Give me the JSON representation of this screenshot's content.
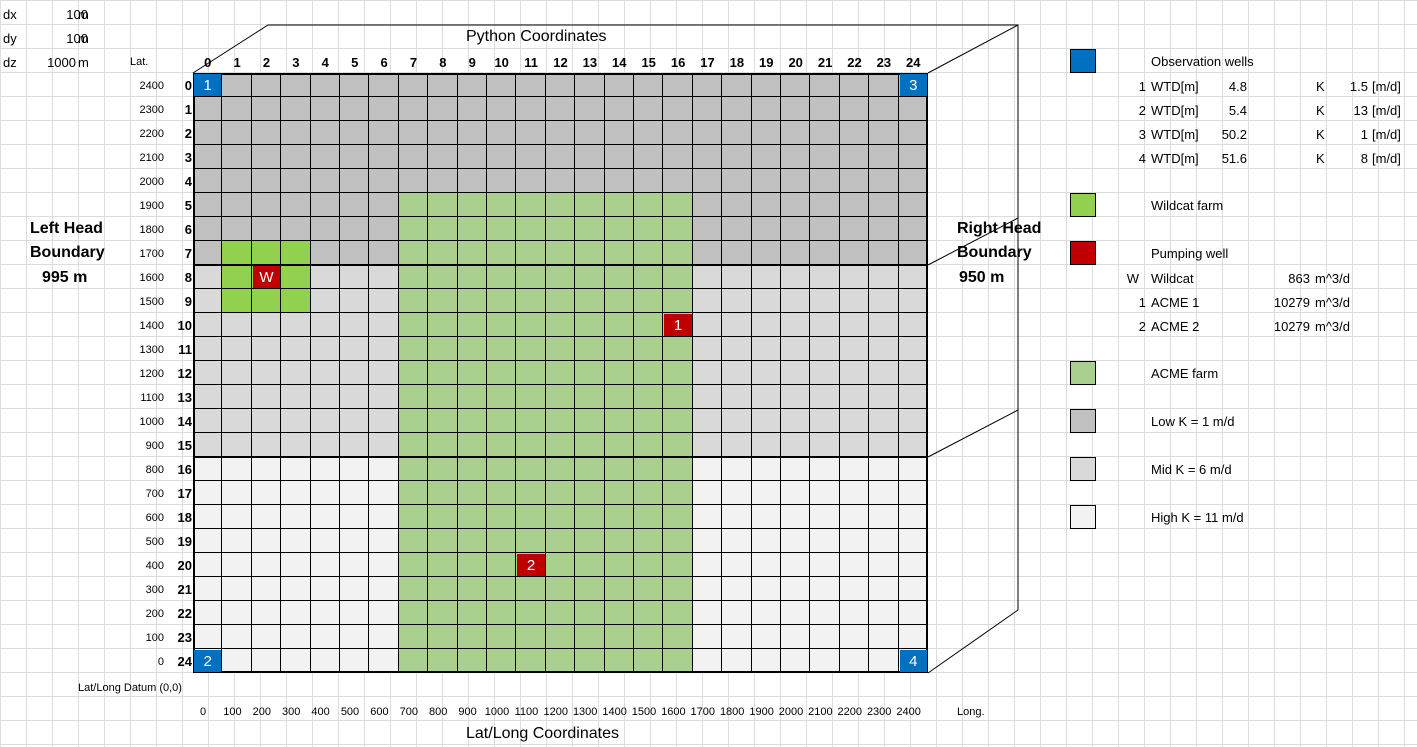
{
  "params": {
    "dx": {
      "label": "dx",
      "value": "100",
      "unit": "m"
    },
    "dy": {
      "label": "dy",
      "value": "100",
      "unit": "m"
    },
    "dz": {
      "label": "dz",
      "value": "1000",
      "unit": "m"
    }
  },
  "headers": {
    "lat": "Lat.",
    "long": "Long.",
    "python_title": "Python Coordinates",
    "latlong_title": "Lat/Long Coordinates",
    "datum": "Lat/Long Datum (0,0)"
  },
  "boundaries": {
    "left": {
      "line1": "Left Head",
      "line2": "Boundary",
      "value": "995  m"
    },
    "right": {
      "line1": "Right Head",
      "line2": "Boundary",
      "value": "950  m"
    }
  },
  "grid": {
    "cols": [
      "0",
      "1",
      "2",
      "3",
      "4",
      "5",
      "6",
      "7",
      "8",
      "9",
      "10",
      "11",
      "12",
      "13",
      "14",
      "15",
      "16",
      "17",
      "18",
      "19",
      "20",
      "21",
      "22",
      "23",
      "24"
    ],
    "rows": [
      "0",
      "1",
      "2",
      "3",
      "4",
      "5",
      "6",
      "7",
      "8",
      "9",
      "10",
      "11",
      "12",
      "13",
      "14",
      "15",
      "16",
      "17",
      "18",
      "19",
      "20",
      "21",
      "22",
      "23",
      "24"
    ],
    "lat_labels": [
      "2400",
      "2300",
      "2200",
      "2100",
      "2000",
      "1900",
      "1800",
      "1700",
      "1600",
      "1500",
      "1400",
      "1300",
      "1200",
      "1100",
      "1000",
      "900",
      "800",
      "700",
      "600",
      "500",
      "400",
      "300",
      "200",
      "100",
      "0"
    ],
    "long_labels": [
      "0",
      "100",
      "200",
      "300",
      "400",
      "500",
      "600",
      "700",
      "800",
      "900",
      "1000",
      "1100",
      "1200",
      "1300",
      "1400",
      "1500",
      "1600",
      "1700",
      "1800",
      "1900",
      "2000",
      "2100",
      "2200",
      "2300",
      "2400"
    ],
    "zones": {
      "low_rows": [
        0,
        7
      ],
      "mid_rows": [
        8,
        15
      ],
      "high_rows": [
        16,
        24
      ]
    },
    "farms": {
      "acme": {
        "cols": [
          7,
          16
        ],
        "rows": [
          5,
          24
        ]
      },
      "wildcat": {
        "cols": [
          1,
          3
        ],
        "rows": [
          7,
          9
        ]
      }
    },
    "markers": [
      {
        "id": "obs-1",
        "label": "1",
        "row": 0,
        "col": 0,
        "kind": "observation"
      },
      {
        "id": "obs-3",
        "label": "3",
        "row": 0,
        "col": 24,
        "kind": "observation"
      },
      {
        "id": "obs-2",
        "label": "2",
        "row": 24,
        "col": 0,
        "kind": "observation"
      },
      {
        "id": "obs-4",
        "label": "4",
        "row": 24,
        "col": 24,
        "kind": "observation"
      },
      {
        "id": "pump-w",
        "label": "W",
        "row": 8,
        "col": 2,
        "kind": "pumping"
      },
      {
        "id": "pump-1",
        "label": "1",
        "row": 10,
        "col": 16,
        "kind": "pumping"
      },
      {
        "id": "pump-2",
        "label": "2",
        "row": 20,
        "col": 11,
        "kind": "pumping"
      }
    ]
  },
  "legend": {
    "observation": {
      "title": "Observation wells",
      "wells": [
        {
          "id": "1",
          "wtd_label": "WTD[m]",
          "wtd": "4.8",
          "k_label": "K",
          "k": "1.5",
          "unit": "[m/d]"
        },
        {
          "id": "2",
          "wtd_label": "WTD[m]",
          "wtd": "5.4",
          "k_label": "K",
          "k": "13",
          "unit": "[m/d]"
        },
        {
          "id": "3",
          "wtd_label": "WTD[m]",
          "wtd": "50.2",
          "k_label": "K",
          "k": "1",
          "unit": "[m/d]"
        },
        {
          "id": "4",
          "wtd_label": "WTD[m]",
          "wtd": "51.6",
          "k_label": "K",
          "k": "8",
          "unit": "[m/d]"
        }
      ]
    },
    "wildcat_farm": "Wildcat farm",
    "pumping": {
      "title": "Pumping well",
      "wells": [
        {
          "id": "W",
          "name": "Wildcat",
          "rate": "863",
          "unit": "m^3/d"
        },
        {
          "id": "1",
          "name": "ACME 1",
          "rate": "10279",
          "unit": "m^3/d"
        },
        {
          "id": "2",
          "name": "ACME 2",
          "rate": "10279",
          "unit": "m^3/d"
        }
      ]
    },
    "acme_farm": "ACME farm",
    "low_k": "Low K = 1 m/d",
    "mid_k": "Mid K = 6 m/d",
    "high_k": "High K = 11 m/d"
  },
  "colors": {
    "low_k": "#c0c0c0",
    "mid_k": "#d9d9d9",
    "high_k": "#f2f2f2",
    "farm": "#a9d08e",
    "wildcat_farm": "#92d050",
    "observation": "#0070c0",
    "pumping": "#c00000"
  }
}
